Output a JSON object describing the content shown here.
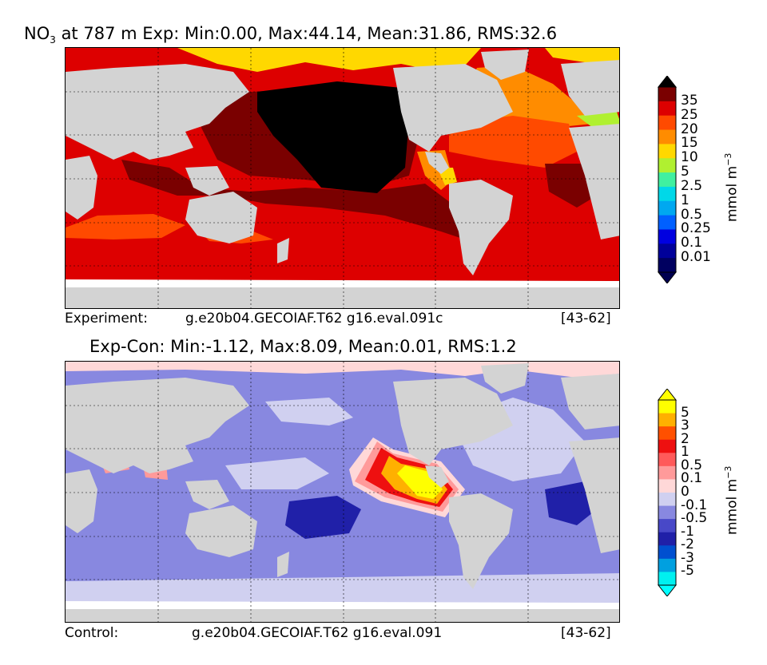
{
  "top_panel": {
    "title_species": "NO",
    "title_subscript": "3",
    "title_rest": " at 787 m Exp: Min:0.00, Max:44.14, Mean:31.86, RMS:32.6",
    "footer_label": "Experiment:",
    "footer_case": "g.e20b04.GECOIAF.T62 g16.eval.091c",
    "footer_years": "[43-62]",
    "colorbar": {
      "levels": [
        "35",
        "25",
        "20",
        "15",
        "10",
        "5",
        "2.5",
        "1",
        "0.5",
        "0.25",
        "0.1",
        "0.01"
      ],
      "colors": [
        "#7a0000",
        "#dd0000",
        "#ff4a00",
        "#ff8c00",
        "#ffd800",
        "#b0f030",
        "#40f0a0",
        "#00d8e8",
        "#00a8f0",
        "#0060ff",
        "#0000e0",
        "#00009a",
        "#000060"
      ],
      "over_color": "#000000",
      "under_color": "#000050",
      "unit_main": "mmol m",
      "unit_exp": "−3"
    },
    "colors": {
      "land": "#d3d3d3",
      "ocean_main": "#dd0000",
      "deep": "#7a0000",
      "max": "#000000",
      "mid": "#ff4a00",
      "atl": "#ff8c00",
      "arctic": "#ffd800",
      "green": "#b0f030",
      "blue": "#0000e0"
    }
  },
  "bottom_panel": {
    "title": "Exp-Con: Min:-1.12, Max:8.09, Mean:0.01, RMS:1.2",
    "footer_label": "Control:",
    "footer_case": "g.e20b04.GECOIAF.T62 g16.eval.091",
    "footer_years": "[43-62]",
    "colorbar": {
      "levels": [
        "5",
        "3",
        "2",
        "1",
        "0.5",
        "0.1",
        "0",
        "-0.1",
        "-0.5",
        "-1",
        "-2",
        "-3",
        "-5"
      ],
      "colors": [
        "#ffff00",
        "#ffb000",
        "#ff5000",
        "#ee1010",
        "#ff5a5a",
        "#ff9a9a",
        "#ffd8d8",
        "#d0d0f0",
        "#8888e0",
        "#4848c8",
        "#2020a8",
        "#0050d0",
        "#00a0e0",
        "#00f0f0"
      ],
      "over_color": "#ffff00",
      "under_color": "#00ffff",
      "unit_main": "mmol m",
      "unit_exp": "−3"
    },
    "colors": {
      "land": "#d3d3d3",
      "ocean_main": "#8888e0",
      "light": "#d0d0f0",
      "dark": "#2020a8",
      "pink": "#ffd8d8",
      "salmon": "#ff9a9a",
      "red": "#ee1010",
      "orange": "#ffb000",
      "yellow": "#ffff00"
    }
  }
}
